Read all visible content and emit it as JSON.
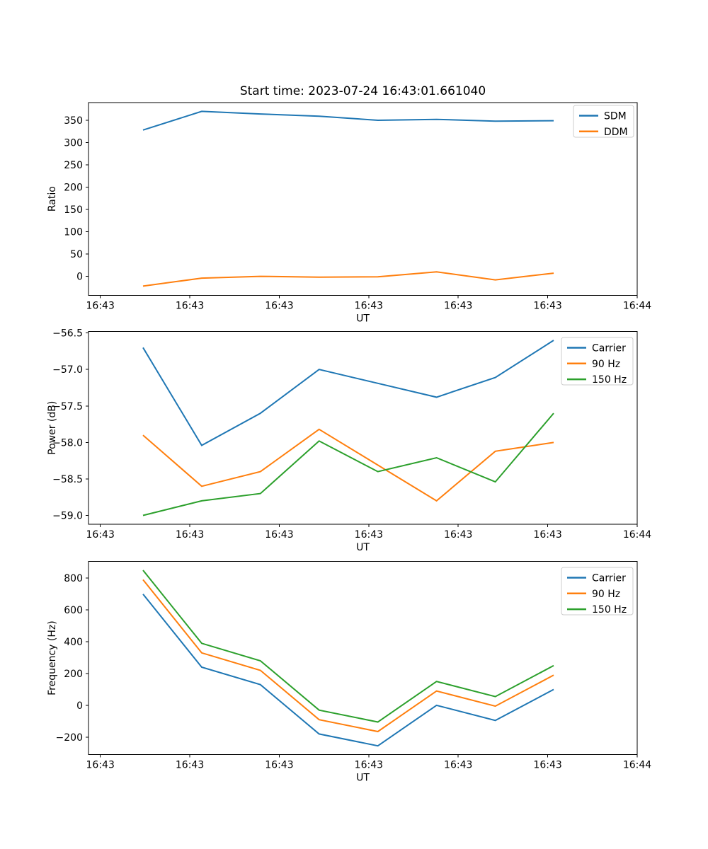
{
  "title": "Start time: 2023-07-24 16:43:01.661040",
  "palette": {
    "blue": "#1f77b4",
    "orange": "#ff7f0e",
    "green": "#2ca02c"
  },
  "chart_data": [
    {
      "type": "line",
      "name": "ratio",
      "title": "",
      "xlabel": "UT",
      "ylabel": "Ratio",
      "grid": false,
      "xlim": [
        -1.32,
        60
      ],
      "ylim": [
        -42.6,
        389.6
      ],
      "x_seconds": [
        4.77,
        11.33,
        17.89,
        24.45,
        31.02,
        37.58,
        44.14,
        50.66
      ],
      "x_ticks": [
        {
          "v": 0,
          "label": "16:43"
        },
        {
          "v": 10,
          "label": "16:43"
        },
        {
          "v": 20,
          "label": "16:43"
        },
        {
          "v": 30,
          "label": "16:43"
        },
        {
          "v": 40,
          "label": "16:43"
        },
        {
          "v": 50,
          "label": "16:43"
        },
        {
          "v": 60,
          "label": "16:44"
        }
      ],
      "y_ticks": [
        {
          "v": 0,
          "label": "0"
        },
        {
          "v": 50,
          "label": "50"
        },
        {
          "v": 100,
          "label": "100"
        },
        {
          "v": 150,
          "label": "150"
        },
        {
          "v": 200,
          "label": "200"
        },
        {
          "v": 250,
          "label": "250"
        },
        {
          "v": 300,
          "label": "300"
        },
        {
          "v": 350,
          "label": "350"
        }
      ],
      "series": [
        {
          "name": "SDM",
          "color": "#1f77b4",
          "values": [
            328,
            370,
            364,
            359,
            350,
            352,
            348,
            349
          ]
        },
        {
          "name": "DDM",
          "color": "#ff7f0e",
          "values": [
            -22,
            -4,
            0,
            -2,
            -1,
            10,
            -8,
            7
          ]
        }
      ],
      "legend": {
        "position": "upper right",
        "labels": [
          "SDM",
          "DDM"
        ]
      }
    },
    {
      "type": "line",
      "name": "power",
      "title": "",
      "xlabel": "UT",
      "ylabel": "Power (dB)",
      "grid": false,
      "xlim": [
        -1.32,
        60
      ],
      "ylim": [
        -59.12,
        -56.48
      ],
      "x_seconds": [
        4.77,
        11.33,
        17.89,
        24.45,
        31.02,
        37.58,
        44.14,
        50.66
      ],
      "x_ticks": [
        {
          "v": 0,
          "label": "16:43"
        },
        {
          "v": 10,
          "label": "16:43"
        },
        {
          "v": 20,
          "label": "16:43"
        },
        {
          "v": 30,
          "label": "16:43"
        },
        {
          "v": 40,
          "label": "16:43"
        },
        {
          "v": 50,
          "label": "16:43"
        },
        {
          "v": 60,
          "label": "16:44"
        }
      ],
      "y_ticks": [
        {
          "v": -56.5,
          "label": "−56.5"
        },
        {
          "v": -57.0,
          "label": "−57.0"
        },
        {
          "v": -57.5,
          "label": "−57.5"
        },
        {
          "v": -58.0,
          "label": "−58.0"
        },
        {
          "v": -58.5,
          "label": "−58.5"
        },
        {
          "v": -59.0,
          "label": "−59.0"
        }
      ],
      "series": [
        {
          "name": "Carrier",
          "color": "#1f77b4",
          "values": [
            -56.7,
            -58.04,
            -57.6,
            -57.0,
            -57.19,
            -57.38,
            -57.11,
            -56.6
          ]
        },
        {
          "name": "90 Hz",
          "color": "#ff7f0e",
          "values": [
            -57.9,
            -58.6,
            -58.4,
            -57.82,
            -58.31,
            -58.8,
            -58.12,
            -58.0
          ]
        },
        {
          "name": "150 Hz",
          "color": "#2ca02c",
          "values": [
            -59.0,
            -58.8,
            -58.7,
            -57.98,
            -58.4,
            -58.21,
            -58.54,
            -57.6
          ]
        }
      ],
      "legend": {
        "position": "upper right",
        "labels": [
          "Carrier",
          "90 Hz",
          "150 Hz"
        ]
      }
    },
    {
      "type": "line",
      "name": "frequency",
      "title": "",
      "xlabel": "UT",
      "ylabel": "Frequency (Hz)",
      "grid": false,
      "xlim": [
        -1.32,
        60
      ],
      "ylim": [
        -310,
        905
      ],
      "x_seconds": [
        4.77,
        11.33,
        17.89,
        24.45,
        31.02,
        37.58,
        44.14,
        50.66
      ],
      "x_ticks": [
        {
          "v": 0,
          "label": "16:43"
        },
        {
          "v": 10,
          "label": "16:43"
        },
        {
          "v": 20,
          "label": "16:43"
        },
        {
          "v": 30,
          "label": "16:43"
        },
        {
          "v": 40,
          "label": "16:43"
        },
        {
          "v": 50,
          "label": "16:43"
        },
        {
          "v": 60,
          "label": "16:44"
        }
      ],
      "y_ticks": [
        {
          "v": -200,
          "label": "−200"
        },
        {
          "v": 0,
          "label": "0"
        },
        {
          "v": 200,
          "label": "200"
        },
        {
          "v": 400,
          "label": "400"
        },
        {
          "v": 600,
          "label": "600"
        },
        {
          "v": 800,
          "label": "800"
        }
      ],
      "series": [
        {
          "name": "Carrier",
          "color": "#1f77b4",
          "values": [
            700,
            240,
            130,
            -180,
            -255,
            0,
            -95,
            100
          ]
        },
        {
          "name": "90 Hz",
          "color": "#ff7f0e",
          "values": [
            790,
            330,
            220,
            -90,
            -165,
            90,
            -5,
            190
          ]
        },
        {
          "name": "150 Hz",
          "color": "#2ca02c",
          "values": [
            850,
            390,
            280,
            -30,
            -105,
            150,
            55,
            250
          ]
        }
      ],
      "legend": {
        "position": "upper right",
        "labels": [
          "Carrier",
          "90 Hz",
          "150 Hz"
        ]
      }
    }
  ]
}
